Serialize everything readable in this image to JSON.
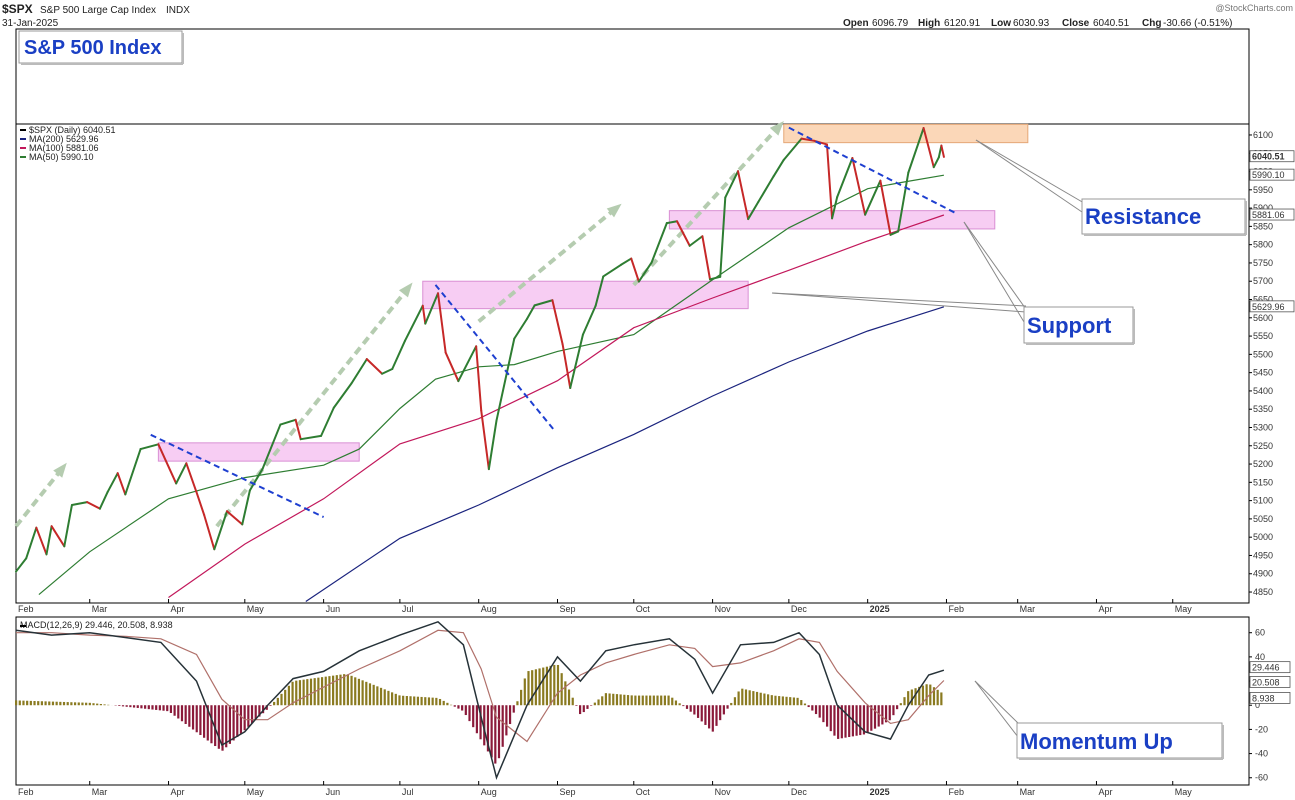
{
  "header": {
    "symbol": "$SPX",
    "name": "S&P 500 Large Cap Index",
    "exchange": "INDX",
    "date": "31-Jan-2025",
    "watermark": "@StockCharts.com",
    "ohlc": {
      "open_label": "Open",
      "open": "6096.79",
      "high_label": "High",
      "high": "6120.91",
      "low_label": "Low",
      "low": "6030.93",
      "close_label": "Close",
      "close": "6040.51",
      "chg_label": "Chg",
      "chg": "-30.66 (-0.51%)"
    }
  },
  "title_box": "S&P 500 Index",
  "legend": [
    {
      "text": "$SPX (Daily) 6040.51",
      "color": "#000000"
    },
    {
      "text": "MA(200) 5629.96",
      "color": "#1a237e"
    },
    {
      "text": "MA(100) 5881.06",
      "color": "#c2185b"
    },
    {
      "text": "MA(50) 5990.10",
      "color": "#2e7d32"
    }
  ],
  "macd_legend": {
    "text": "MACD(12,26,9) 29.446, 20.508, 8.938"
  },
  "callouts": {
    "resistance": "Resistance",
    "support": "Support",
    "momentum": "Momentum Up"
  },
  "price_right_labels": [
    "6040.51",
    "5990.10",
    "5881.06",
    "5629.96"
  ],
  "macd_right_labels": [
    "29.446",
    "20.508",
    "8.938"
  ],
  "colors": {
    "price_up": "#2e7d32",
    "price_down": "#c62828",
    "ma50": "#2e7d32",
    "ma100": "#c2185b",
    "ma200": "#1a237e",
    "trend_dash": "#1e3fd0",
    "arrow": "#b5ccb0",
    "support_zone": "#f4b8ee",
    "resistance_zone": "#f9c9a0",
    "macd_line": "#263238",
    "signal_line": "#b0706a",
    "hist_pos": "#8a7a20",
    "hist_neg": "#8b1a3a",
    "callout_text": "#1a3fc4"
  },
  "chart_data": {
    "type": "line",
    "title": "",
    "x_tick_labels": [
      "Feb",
      "Mar",
      "Apr",
      "May",
      "Jun",
      "Jul",
      "Aug",
      "Sep",
      "Oct",
      "Nov",
      "Dec",
      "2025",
      "Feb",
      "Mar",
      "Apr",
      "May"
    ],
    "y_ticks": [
      4850,
      4900,
      4950,
      5000,
      5050,
      5100,
      5150,
      5200,
      5250,
      5300,
      5350,
      5400,
      5450,
      5500,
      5550,
      5600,
      5650,
      5700,
      5750,
      5800,
      5850,
      5900,
      5950,
      6000,
      6050,
      6100
    ],
    "ylim": [
      4820,
      6130
    ],
    "x_range": [
      "2024-02-01",
      "2025-05-31"
    ],
    "series": [
      {
        "name": "$SPX (Daily)",
        "points": [
          [
            "2024-02-01",
            4906
          ],
          [
            "2024-02-05",
            4942
          ],
          [
            "2024-02-09",
            5026
          ],
          [
            "2024-02-13",
            4953
          ],
          [
            "2024-02-15",
            5030
          ],
          [
            "2024-02-20",
            4975
          ],
          [
            "2024-02-23",
            5088
          ],
          [
            "2024-02-29",
            5096
          ],
          [
            "2024-03-05",
            5078
          ],
          [
            "2024-03-08",
            5123
          ],
          [
            "2024-03-12",
            5175
          ],
          [
            "2024-03-15",
            5117
          ],
          [
            "2024-03-21",
            5241
          ],
          [
            "2024-03-28",
            5254
          ],
          [
            "2024-04-04",
            5147
          ],
          [
            "2024-04-08",
            5202
          ],
          [
            "2024-04-12",
            5123
          ],
          [
            "2024-04-15",
            5061
          ],
          [
            "2024-04-19",
            4967
          ],
          [
            "2024-04-24",
            5071
          ],
          [
            "2024-04-30",
            5035
          ],
          [
            "2024-05-03",
            5128
          ],
          [
            "2024-05-08",
            5187
          ],
          [
            "2024-05-15",
            5308
          ],
          [
            "2024-05-21",
            5321
          ],
          [
            "2024-05-23",
            5268
          ],
          [
            "2024-05-31",
            5277
          ],
          [
            "2024-06-05",
            5354
          ],
          [
            "2024-06-12",
            5421
          ],
          [
            "2024-06-18",
            5487
          ],
          [
            "2024-06-24",
            5447
          ],
          [
            "2024-06-28",
            5460
          ],
          [
            "2024-07-03",
            5537
          ],
          [
            "2024-07-10",
            5633
          ],
          [
            "2024-07-11",
            5584
          ],
          [
            "2024-07-16",
            5667
          ],
          [
            "2024-07-19",
            5505
          ],
          [
            "2024-07-24",
            5427
          ],
          [
            "2024-07-31",
            5522
          ],
          [
            "2024-08-02",
            5346
          ],
          [
            "2024-08-05",
            5186
          ],
          [
            "2024-08-08",
            5319
          ],
          [
            "2024-08-15",
            5543
          ],
          [
            "2024-08-20",
            5597
          ],
          [
            "2024-08-23",
            5634
          ],
          [
            "2024-08-30",
            5648
          ],
          [
            "2024-09-03",
            5528
          ],
          [
            "2024-09-06",
            5408
          ],
          [
            "2024-09-11",
            5554
          ],
          [
            "2024-09-16",
            5633
          ],
          [
            "2024-09-19",
            5713
          ],
          [
            "2024-09-26",
            5745
          ],
          [
            "2024-09-30",
            5762
          ],
          [
            "2024-10-03",
            5699
          ],
          [
            "2024-10-08",
            5751
          ],
          [
            "2024-10-14",
            5859
          ],
          [
            "2024-10-18",
            5864
          ],
          [
            "2024-10-23",
            5797
          ],
          [
            "2024-10-28",
            5823
          ],
          [
            "2024-10-31",
            5705
          ],
          [
            "2024-11-04",
            5712
          ],
          [
            "2024-11-06",
            5929
          ],
          [
            "2024-11-11",
            6001
          ],
          [
            "2024-11-15",
            5870
          ],
          [
            "2024-11-19",
            5917
          ],
          [
            "2024-11-25",
            5987
          ],
          [
            "2024-11-29",
            6032
          ],
          [
            "2024-12-06",
            6090
          ],
          [
            "2024-12-11",
            6084
          ],
          [
            "2024-12-16",
            6074
          ],
          [
            "2024-12-18",
            5872
          ],
          [
            "2024-12-20",
            5930
          ],
          [
            "2024-12-26",
            6037
          ],
          [
            "2024-12-31",
            5882
          ],
          [
            "2025-01-06",
            5975
          ],
          [
            "2025-01-10",
            5827
          ],
          [
            "2025-01-13",
            5836
          ],
          [
            "2025-01-17",
            5997
          ],
          [
            "2025-01-23",
            6119
          ],
          [
            "2025-01-27",
            6012
          ],
          [
            "2025-01-29",
            6039
          ],
          [
            "2025-01-30",
            6071
          ],
          [
            "2025-01-31",
            6040
          ]
        ]
      },
      {
        "name": "MA(50)",
        "points": [
          [
            "2024-02-10",
            4843
          ],
          [
            "2024-03-01",
            4960
          ],
          [
            "2024-04-01",
            5105
          ],
          [
            "2024-05-01",
            5163
          ],
          [
            "2024-06-01",
            5197
          ],
          [
            "2024-06-15",
            5241
          ],
          [
            "2024-07-01",
            5352
          ],
          [
            "2024-07-15",
            5432
          ],
          [
            "2024-08-01",
            5466
          ],
          [
            "2024-08-15",
            5472
          ],
          [
            "2024-09-01",
            5508
          ],
          [
            "2024-10-01",
            5554
          ],
          [
            "2024-11-01",
            5704
          ],
          [
            "2024-12-01",
            5846
          ],
          [
            "2025-01-01",
            5953
          ],
          [
            "2025-01-15",
            5971
          ],
          [
            "2025-01-31",
            5990
          ]
        ]
      },
      {
        "name": "MA(100)",
        "points": [
          [
            "2024-04-01",
            4835
          ],
          [
            "2024-05-01",
            4981
          ],
          [
            "2024-06-01",
            5105
          ],
          [
            "2024-07-01",
            5255
          ],
          [
            "2024-08-01",
            5324
          ],
          [
            "2024-09-01",
            5428
          ],
          [
            "2024-10-01",
            5573
          ],
          [
            "2024-11-01",
            5654
          ],
          [
            "2024-12-01",
            5730
          ],
          [
            "2025-01-01",
            5810
          ],
          [
            "2025-01-31",
            5881
          ]
        ]
      },
      {
        "name": "MA(200)",
        "points": [
          [
            "2024-05-25",
            4824
          ],
          [
            "2024-07-01",
            4997
          ],
          [
            "2024-08-01",
            5088
          ],
          [
            "2024-09-01",
            5190
          ],
          [
            "2024-10-01",
            5281
          ],
          [
            "2024-11-01",
            5386
          ],
          [
            "2024-12-01",
            5479
          ],
          [
            "2025-01-01",
            5564
          ],
          [
            "2025-01-31",
            5630
          ]
        ]
      }
    ],
    "support_zones": [
      {
        "x": [
          "2024-03-28",
          "2024-06-15"
        ],
        "y": [
          5208,
          5258
        ]
      },
      {
        "x": [
          "2024-07-10",
          "2024-11-15"
        ],
        "y": [
          5625,
          5700
        ]
      },
      {
        "x": [
          "2024-10-15",
          "2025-02-20"
        ],
        "y": [
          5843,
          5893
        ]
      }
    ],
    "resistance_zones": [
      {
        "x": [
          "2024-11-29",
          "2025-03-05"
        ],
        "y": [
          6079,
          6129
        ]
      }
    ],
    "trend_lines": [
      {
        "from": [
          "2024-03-25",
          5280
        ],
        "to": [
          "2024-06-01",
          5055
        ]
      },
      {
        "from": [
          "2024-07-15",
          5690
        ],
        "to": [
          "2024-08-31",
          5290
        ]
      },
      {
        "from": [
          "2024-12-01",
          6120
        ],
        "to": [
          "2025-02-05",
          5885
        ]
      }
    ],
    "momentum_arrows": [
      {
        "from": [
          "2024-02-01",
          5030
        ],
        "to": [
          "2024-02-20",
          5195
        ]
      },
      {
        "from": [
          "2024-04-20",
          5030
        ],
        "to": [
          "2024-07-05",
          5688
        ]
      },
      {
        "from": [
          "2024-08-01",
          5590
        ],
        "to": [
          "2024-09-25",
          5905
        ]
      },
      {
        "from": [
          "2024-10-01",
          5690
        ],
        "to": [
          "2024-11-28",
          6130
        ]
      }
    ],
    "macd_panel": {
      "title": "MACD(12,26,9)",
      "y_ticks": [
        -60,
        -40,
        -20,
        0,
        20,
        40,
        60
      ],
      "ylim": [
        -66,
        73
      ],
      "macd": [
        [
          "2024-02-01",
          62
        ],
        [
          "2024-02-15",
          58
        ],
        [
          "2024-03-01",
          60
        ],
        [
          "2024-03-15",
          56
        ],
        [
          "2024-03-29",
          52
        ],
        [
          "2024-04-12",
          20
        ],
        [
          "2024-04-22",
          -33
        ],
        [
          "2024-05-01",
          -22
        ],
        [
          "2024-05-10",
          0
        ],
        [
          "2024-05-20",
          22
        ],
        [
          "2024-06-01",
          28
        ],
        [
          "2024-06-15",
          45
        ],
        [
          "2024-07-01",
          58
        ],
        [
          "2024-07-16",
          69
        ],
        [
          "2024-07-26",
          50
        ],
        [
          "2024-08-02",
          -10
        ],
        [
          "2024-08-08",
          -60
        ],
        [
          "2024-08-20",
          0
        ],
        [
          "2024-09-01",
          40
        ],
        [
          "2024-09-10",
          20
        ],
        [
          "2024-09-20",
          45
        ],
        [
          "2024-10-01",
          50
        ],
        [
          "2024-10-15",
          55
        ],
        [
          "2024-10-25",
          38
        ],
        [
          "2024-11-01",
          10
        ],
        [
          "2024-11-12",
          50
        ],
        [
          "2024-11-25",
          52
        ],
        [
          "2024-12-05",
          60
        ],
        [
          "2024-12-13",
          42
        ],
        [
          "2024-12-20",
          0
        ],
        [
          "2024-12-31",
          -22
        ],
        [
          "2025-01-10",
          -28
        ],
        [
          "2025-01-17",
          0
        ],
        [
          "2025-01-25",
          25
        ],
        [
          "2025-01-31",
          29
        ]
      ],
      "signal": [
        [
          "2024-02-01",
          60
        ],
        [
          "2024-02-15",
          60
        ],
        [
          "2024-03-01",
          58
        ],
        [
          "2024-03-15",
          57
        ],
        [
          "2024-03-29",
          55
        ],
        [
          "2024-04-12",
          42
        ],
        [
          "2024-04-22",
          5
        ],
        [
          "2024-05-01",
          -12
        ],
        [
          "2024-05-10",
          -12
        ],
        [
          "2024-05-20",
          2
        ],
        [
          "2024-06-01",
          15
        ],
        [
          "2024-06-15",
          30
        ],
        [
          "2024-07-01",
          45
        ],
        [
          "2024-07-16",
          62
        ],
        [
          "2024-07-26",
          60
        ],
        [
          "2024-08-02",
          30
        ],
        [
          "2024-08-08",
          -10
        ],
        [
          "2024-08-20",
          -30
        ],
        [
          "2024-09-01",
          10
        ],
        [
          "2024-09-10",
          25
        ],
        [
          "2024-09-20",
          35
        ],
        [
          "2024-10-01",
          42
        ],
        [
          "2024-10-15",
          50
        ],
        [
          "2024-10-25",
          47
        ],
        [
          "2024-11-01",
          32
        ],
        [
          "2024-11-12",
          35
        ],
        [
          "2024-11-25",
          45
        ],
        [
          "2024-12-05",
          55
        ],
        [
          "2024-12-13",
          52
        ],
        [
          "2024-12-20",
          28
        ],
        [
          "2024-12-31",
          2
        ],
        [
          "2025-01-10",
          -15
        ],
        [
          "2025-01-17",
          -12
        ],
        [
          "2025-01-25",
          8
        ],
        [
          "2025-01-31",
          20.5
        ]
      ],
      "histogram": [
        [
          "2024-02-01",
          4
        ],
        [
          "2024-03-01",
          2
        ],
        [
          "2024-04-01",
          -5
        ],
        [
          "2024-04-22",
          -38
        ],
        [
          "2024-05-10",
          -3
        ],
        [
          "2024-05-20",
          20
        ],
        [
          "2024-06-10",
          26
        ],
        [
          "2024-07-01",
          8
        ],
        [
          "2024-07-16",
          6
        ],
        [
          "2024-07-26",
          -5
        ],
        [
          "2024-08-08",
          -50
        ],
        [
          "2024-08-20",
          28
        ],
        [
          "2024-09-01",
          34
        ],
        [
          "2024-09-10",
          -8
        ],
        [
          "2024-09-20",
          10
        ],
        [
          "2024-10-01",
          8
        ],
        [
          "2024-10-15",
          8
        ],
        [
          "2024-10-25",
          -8
        ],
        [
          "2024-11-01",
          -22
        ],
        [
          "2024-11-12",
          14
        ],
        [
          "2024-11-25",
          8
        ],
        [
          "2024-12-05",
          6
        ],
        [
          "2024-12-13",
          -10
        ],
        [
          "2024-12-20",
          -28
        ],
        [
          "2024-12-31",
          -24
        ],
        [
          "2025-01-10",
          -12
        ],
        [
          "2025-01-17",
          12
        ],
        [
          "2025-01-25",
          18
        ],
        [
          "2025-01-31",
          9
        ]
      ]
    }
  }
}
